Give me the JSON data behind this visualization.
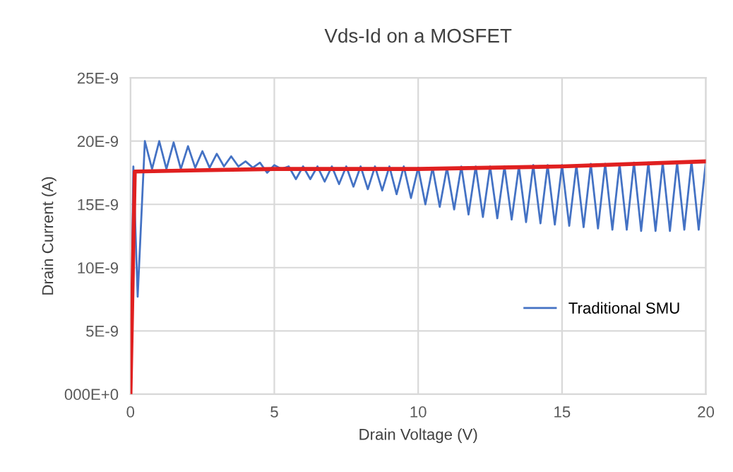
{
  "chart_data": {
    "type": "line",
    "title": "Vds-Id on a MOSFET",
    "xlabel": "Drain Voltage (V)",
    "ylabel": "Drain Current (A)",
    "xlim": [
      0,
      20
    ],
    "xticks": [
      0,
      5,
      10,
      15,
      20
    ],
    "ylim": [
      0,
      2.5e-08
    ],
    "yticks": [
      {
        "value": 0,
        "label": "000E+0"
      },
      {
        "value": 5e-09,
        "label": "5E-9"
      },
      {
        "value": 1e-08,
        "label": "10E-9"
      },
      {
        "value": 1.5e-08,
        "label": "15E-9"
      },
      {
        "value": 2e-08,
        "label": "20E-9"
      },
      {
        "value": 2.5e-08,
        "label": "25E-9"
      }
    ],
    "grid": true,
    "legend": "bottom right",
    "line_style": "solid",
    "marker": "none",
    "series": [
      {
        "name": "Traditional SMU",
        "color": "#4472c4",
        "x": [
          0,
          0.1,
          0.25,
          0.5,
          0.75,
          1.0,
          1.25,
          1.5,
          1.75,
          2.0,
          2.25,
          2.5,
          2.75,
          3.0,
          3.25,
          3.5,
          3.75,
          4.0,
          4.25,
          4.5,
          4.75,
          5.0,
          5.25,
          5.5,
          5.75,
          6.0,
          6.25,
          6.5,
          6.75,
          7.0,
          7.25,
          7.5,
          7.75,
          8.0,
          8.25,
          8.5,
          8.75,
          9.0,
          9.25,
          9.5,
          9.75,
          10.0,
          10.25,
          10.5,
          10.75,
          11.0,
          11.25,
          11.5,
          11.75,
          12.0,
          12.25,
          12.5,
          12.75,
          13.0,
          13.25,
          13.5,
          13.75,
          14.0,
          14.25,
          14.5,
          14.75,
          15.0,
          15.25,
          15.5,
          15.75,
          16.0,
          16.25,
          16.5,
          16.75,
          17.0,
          17.25,
          17.5,
          17.75,
          18.0,
          18.25,
          18.5,
          18.75,
          19.0,
          19.25,
          19.5,
          19.75,
          20.0
        ],
        "values": [
          0,
          1.8e-08,
          7.7e-09,
          2e-08,
          1.78e-08,
          2e-08,
          1.78e-08,
          1.99e-08,
          1.78e-08,
          1.96e-08,
          1.79e-08,
          1.92e-08,
          1.79e-08,
          1.9e-08,
          1.8e-08,
          1.88e-08,
          1.8e-08,
          1.84e-08,
          1.79e-08,
          1.83e-08,
          1.75e-08,
          1.81e-08,
          1.78e-08,
          1.8e-08,
          1.7e-08,
          1.8e-08,
          1.7e-08,
          1.8e-08,
          1.68e-08,
          1.8e-08,
          1.66e-08,
          1.8e-08,
          1.64e-08,
          1.8e-08,
          1.62e-08,
          1.8e-08,
          1.61e-08,
          1.8e-08,
          1.58e-08,
          1.8e-08,
          1.55e-08,
          1.79e-08,
          1.5e-08,
          1.79e-08,
          1.48e-08,
          1.79e-08,
          1.46e-08,
          1.8e-08,
          1.42e-08,
          1.8e-08,
          1.4e-08,
          1.8e-08,
          1.39e-08,
          1.8e-08,
          1.38e-08,
          1.8e-08,
          1.36e-08,
          1.81e-08,
          1.35e-08,
          1.81e-08,
          1.34e-08,
          1.81e-08,
          1.33e-08,
          1.81e-08,
          1.32e-08,
          1.82e-08,
          1.31e-08,
          1.82e-08,
          1.3e-08,
          1.82e-08,
          1.3e-08,
          1.83e-08,
          1.29e-08,
          1.83e-08,
          1.29e-08,
          1.83e-08,
          1.29e-08,
          1.83e-08,
          1.3e-08,
          1.84e-08,
          1.3e-08,
          1.84e-08
        ]
      },
      {
        "color": "#e02020",
        "x": [
          0,
          0.15,
          5,
          10,
          15,
          20
        ],
        "values": [
          0,
          1.76e-08,
          1.78e-08,
          1.78e-08,
          1.8e-08,
          1.84e-08
        ]
      }
    ]
  }
}
